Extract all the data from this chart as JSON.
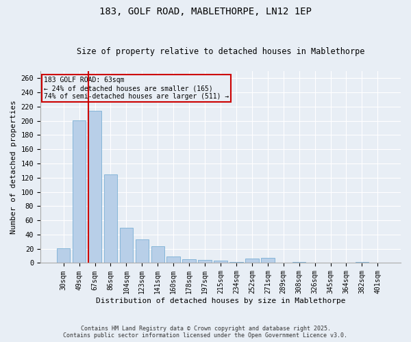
{
  "title_line1": "183, GOLF ROAD, MABLETHORPE, LN12 1EP",
  "title_line2": "Size of property relative to detached houses in Mablethorpe",
  "xlabel": "Distribution of detached houses by size in Mablethorpe",
  "ylabel": "Number of detached properties",
  "categories": [
    "30sqm",
    "49sqm",
    "67sqm",
    "86sqm",
    "104sqm",
    "123sqm",
    "141sqm",
    "160sqm",
    "178sqm",
    "197sqm",
    "215sqm",
    "234sqm",
    "252sqm",
    "271sqm",
    "289sqm",
    "308sqm",
    "326sqm",
    "345sqm",
    "364sqm",
    "382sqm",
    "401sqm"
  ],
  "values": [
    21,
    201,
    214,
    125,
    50,
    33,
    24,
    9,
    5,
    4,
    3,
    1,
    6,
    7,
    0,
    1,
    0,
    0,
    0,
    1,
    0
  ],
  "bar_color": "#b8cfe8",
  "bar_edge_color": "#7aafd4",
  "vline_color": "#cc0000",
  "vline_pos": 1.57,
  "annotation_title": "183 GOLF ROAD: 63sqm",
  "annotation_line2": "← 24% of detached houses are smaller (165)",
  "annotation_line3": "74% of semi-detached houses are larger (511) →",
  "annotation_box_color": "#cc0000",
  "ylim": [
    0,
    270
  ],
  "yticks": [
    0,
    20,
    40,
    60,
    80,
    100,
    120,
    140,
    160,
    180,
    200,
    220,
    240,
    260
  ],
  "background_color": "#e8eef5",
  "footer_line1": "Contains HM Land Registry data © Crown copyright and database right 2025.",
  "footer_line2": "Contains public sector information licensed under the Open Government Licence v3.0."
}
